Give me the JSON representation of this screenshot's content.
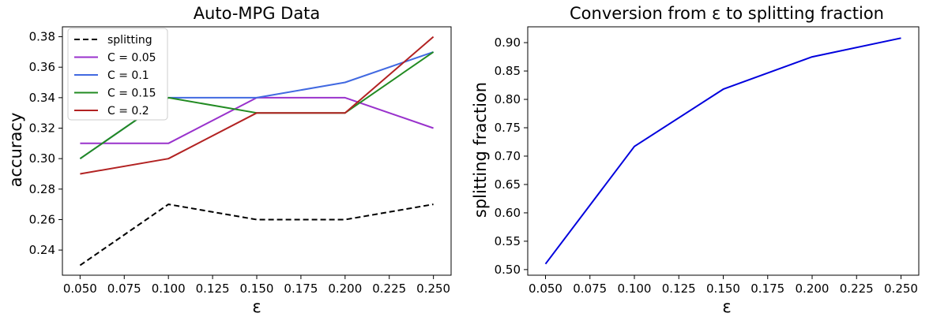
{
  "chart_data": [
    {
      "type": "line",
      "title": "Auto-MPG Data",
      "xlabel": "ε",
      "ylabel": "accuracy",
      "x": [
        0.05,
        0.1,
        0.15,
        0.2,
        0.25
      ],
      "xlim": [
        0.04,
        0.26
      ],
      "ylim": [
        0.2235,
        0.3865
      ],
      "xticks": [
        "0.050",
        "0.075",
        "0.100",
        "0.125",
        "0.150",
        "0.175",
        "0.200",
        "0.225",
        "0.250"
      ],
      "yticks": [
        "0.24",
        "0.26",
        "0.28",
        "0.30",
        "0.32",
        "0.34",
        "0.36",
        "0.38"
      ],
      "grid": false,
      "legend": "top-left",
      "series": [
        {
          "name": "splitting",
          "values": [
            0.23,
            0.27,
            0.26,
            0.26,
            0.27
          ],
          "color": "#000000",
          "dashed": true
        },
        {
          "name": "C = 0.05",
          "values": [
            0.31,
            0.31,
            0.34,
            0.34,
            0.32
          ],
          "color": "#9932cc",
          "dashed": false
        },
        {
          "name": "C = 0.1",
          "values": [
            0.3,
            0.34,
            0.34,
            0.35,
            0.37
          ],
          "color": "#4169e1",
          "dashed": false
        },
        {
          "name": "C = 0.15",
          "values": [
            0.3,
            0.34,
            0.33,
            0.33,
            0.37
          ],
          "color": "#228b22",
          "dashed": false
        },
        {
          "name": "C = 0.2",
          "values": [
            0.29,
            0.3,
            0.33,
            0.33,
            0.38
          ],
          "color": "#b22222",
          "dashed": false
        }
      ]
    },
    {
      "type": "line",
      "title": "Conversion from ε to splitting fraction",
      "xlabel": "ε",
      "ylabel": "splitting fraction",
      "x": [
        0.05,
        0.1,
        0.15,
        0.2,
        0.25
      ],
      "xlim": [
        0.04,
        0.26
      ],
      "ylim": [
        0.4901,
        0.9279
      ],
      "xticks": [
        "0.050",
        "0.075",
        "0.100",
        "0.125",
        "0.150",
        "0.175",
        "0.200",
        "0.225",
        "0.250"
      ],
      "yticks": [
        "0.50",
        "0.55",
        "0.60",
        "0.65",
        "0.70",
        "0.75",
        "0.80",
        "0.85",
        "0.90"
      ],
      "grid": false,
      "series": [
        {
          "values": [
            0.51,
            0.717,
            0.818,
            0.875,
            0.908
          ],
          "color": "#0000dd",
          "dashed": false
        }
      ]
    }
  ]
}
